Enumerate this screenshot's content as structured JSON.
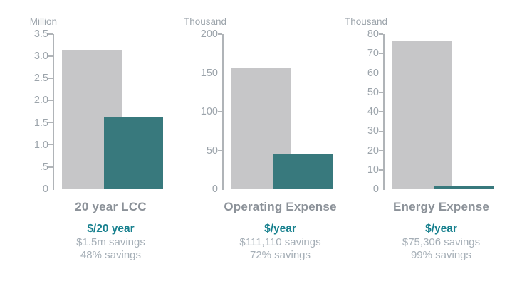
{
  "colors": {
    "background": "#ffffff",
    "bar_gray": "#c6c6c8",
    "bar_teal": "#38797d",
    "axis_line": "#b0b4b8",
    "tick_text": "#9ca4ab",
    "chart_title_text": "#8c9299",
    "unit_text": "#17808e",
    "savings_text": "#a6afb7"
  },
  "chart_data": [
    {
      "type": "bar",
      "title": "20 year LCC",
      "y_axis_unit": "Million",
      "ylim": [
        0,
        3.5
      ],
      "grid": false,
      "legend": "none",
      "yticks": [
        {
          "label": "3.5",
          "value": 3.5
        },
        {
          "label": "3.0",
          "value": 3.0
        },
        {
          "label": "2.5",
          "value": 2.5
        },
        {
          "label": "2.0",
          "value": 2.0
        },
        {
          "label": "1.5",
          "value": 1.5
        },
        {
          "label": "1.0",
          "value": 1.0
        },
        {
          "label": ".5",
          "value": 0.5
        },
        {
          "label": "0",
          "value": 0
        }
      ],
      "series": [
        {
          "name": "gray-bar",
          "value": 3.12
        },
        {
          "name": "teal-bar",
          "value": 1.62
        }
      ],
      "footer": {
        "unit": "$/20 year",
        "savings_amount": "$1.5m savings",
        "savings_percent": "48% savings"
      }
    },
    {
      "type": "bar",
      "title": "Operating Expense",
      "y_axis_unit": "Thousand",
      "ylim": [
        0,
        200
      ],
      "grid": false,
      "legend": "none",
      "yticks": [
        {
          "label": "200",
          "value": 200
        },
        {
          "label": "150",
          "value": 150
        },
        {
          "label": "100",
          "value": 100
        },
        {
          "label": "50",
          "value": 50
        },
        {
          "label": "0",
          "value": 0
        }
      ],
      "series": [
        {
          "name": "gray-bar",
          "value": 155
        },
        {
          "name": "teal-bar",
          "value": 44
        }
      ],
      "footer": {
        "unit": "$/year",
        "savings_amount": "$111,110 savings",
        "savings_percent": "72% savings"
      }
    },
    {
      "type": "bar",
      "title": "Energy Expense",
      "y_axis_unit": "Thousand",
      "ylim": [
        0,
        80
      ],
      "grid": false,
      "legend": "none",
      "yticks": [
        {
          "label": "80",
          "value": 80
        },
        {
          "label": "70",
          "value": 70
        },
        {
          "label": "60",
          "value": 60
        },
        {
          "label": "50",
          "value": 50
        },
        {
          "label": "40",
          "value": 40
        },
        {
          "label": "30",
          "value": 30
        },
        {
          "label": "20",
          "value": 20
        },
        {
          "label": "10",
          "value": 10
        },
        {
          "label": "0",
          "value": 0
        }
      ],
      "series": [
        {
          "name": "gray-bar",
          "value": 76
        },
        {
          "name": "teal-bar",
          "value": 0.9
        }
      ],
      "footer": {
        "unit": "$/year",
        "savings_amount": "$75,306 savings",
        "savings_percent": "99% savings"
      }
    }
  ]
}
